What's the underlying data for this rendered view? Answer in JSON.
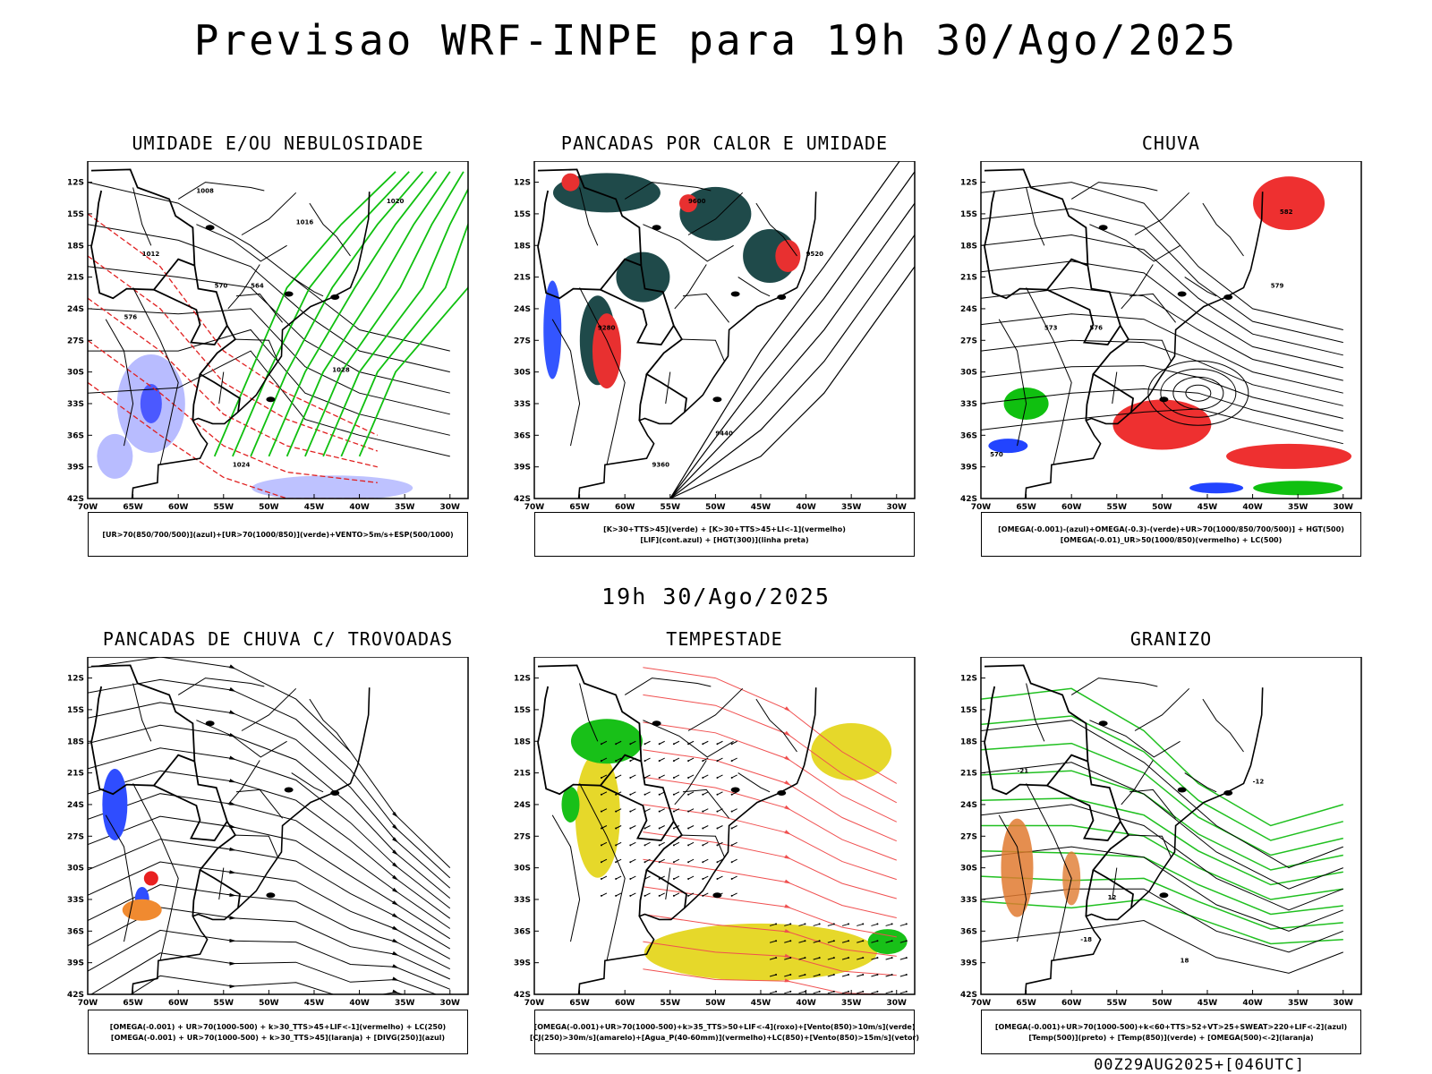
{
  "main_title": "Previsao WRF-INPE  para 19h 30/Ago/2025",
  "mid_title": "19h 30/Ago/2025",
  "footer": "00Z29AUG2025+[046UTC]",
  "lat_labels": [
    "12S",
    "15S",
    "18S",
    "21S",
    "24S",
    "27S",
    "30S",
    "33S",
    "36S",
    "39S",
    "42S"
  ],
  "lon_labels": [
    "70W",
    "65W",
    "60W",
    "55W",
    "50W",
    "45W",
    "40W",
    "35W",
    "30W"
  ],
  "panels": [
    {
      "title": "UMIDADE E/OU NEBULOSIDADE",
      "legend": [
        "[UR>70(850/700/500)](azul)+[UR>70(1000/850)](verde)+VENTO>5m/s+ESP(500/1000)"
      ],
      "contour_labels": [
        "1008",
        "1012",
        "1016",
        "1020",
        "1024",
        "1028",
        "564",
        "570",
        "576"
      ]
    },
    {
      "title": "PANCADAS POR CALOR E UMIDADE",
      "legend": [
        "[K>30+TTS>45](verde) + [K>30+TTS>45+LI<-1](vermelho)",
        "[LIF](cont.azul) + [HGT(300)](linha preta)"
      ],
      "contour_labels": [
        "9600",
        "9520",
        "9440",
        "9360",
        "9280"
      ]
    },
    {
      "title": "CHUVA",
      "legend": [
        "[OMEGA(-0.001)-(azul)+OMEGA(-0.3)-(verde)+UR>70(1000/850/700/500)] + HGT(500)",
        "[OMEGA(-0.01)_UR>50(1000/850)(vermelho) + LC(500)"
      ],
      "contour_labels": [
        "582",
        "579",
        "576",
        "573",
        "570"
      ]
    },
    {
      "title": "PANCADAS DE CHUVA C/ TROVOADAS",
      "legend": [
        "[OMEGA(-0.001) + UR>70(1000-500) + k>30_TTS>45+LIF<-1](vermelho) + LC(250)",
        "[OMEGA(-0.001) + UR>70(1000-500) + k>30_TTS>45](laranja) + [DIVG(250)](azul)"
      ],
      "contour_labels": []
    },
    {
      "title": "TEMPESTADE",
      "legend": [
        "[OMEGA(-0.001)+UR>70(1000-500)+k>35_TTS>50+LIF<-4](roxo)+[Vento(850)>10m/s](verde)",
        "[CJ(250)>30m/s](amarelo)+[Agua_P(40-60mm)](vermelho)+LC(850)+[Vento(850)>15m/s](vetor)"
      ],
      "contour_labels": []
    },
    {
      "title": "GRANIZO",
      "legend": [
        "[OMEGA(-0.001)+UR>70(1000-500)+k<60+TTS>52+VT>25+SWEAT>220+LIF<-2](azul)",
        "[Temp(500)](preto) + [Temp(850)](verde) + [OMEGA(500)<-2](laranja)"
      ],
      "contour_labels": [
        "-21",
        "-18",
        "-12",
        "12",
        "18"
      ]
    }
  ]
}
